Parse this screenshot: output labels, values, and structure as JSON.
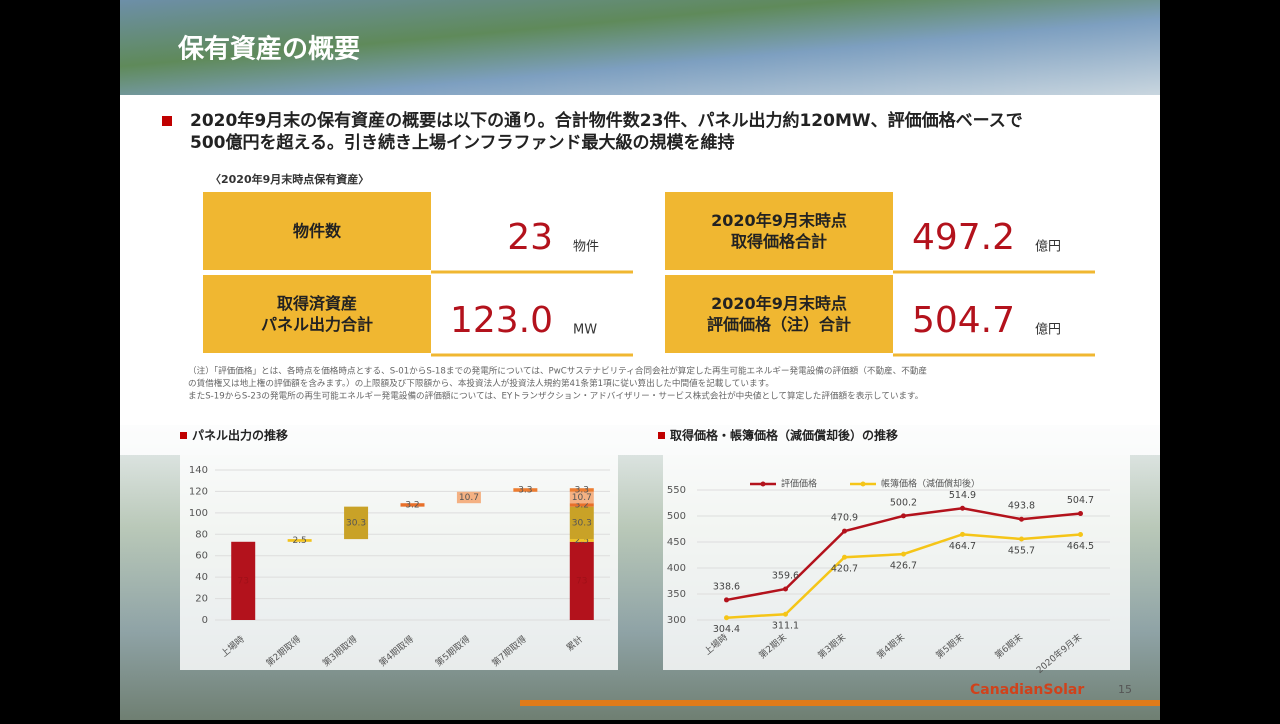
{
  "header": {
    "title": "保有資産の概要"
  },
  "summary_lines": [
    "2020年9月末の保有資産の概要は以下の通り。合計物件数23件、パネル出力約120MW、評価価格ベースで",
    "500億円を超える。引き続き上場インフラファンド最大級の規模を維持"
  ],
  "table_caption": "〈2020年9月末時点保有資産〉",
  "cards": [
    {
      "label_lines": [
        "物件数"
      ],
      "value": "23",
      "unit": "物件"
    },
    {
      "label_lines": [
        "2020年9月末時点",
        "取得価格合計"
      ],
      "value": "497.2",
      "unit": "億円"
    },
    {
      "label_lines": [
        "取得済資産",
        "パネル出力合計"
      ],
      "value": "123.0",
      "unit": "MW"
    },
    {
      "label_lines": [
        "2020年9月末時点",
        "評価価格（注）合計"
      ],
      "value": "504.7",
      "unit": "億円"
    }
  ],
  "note_lines": [
    "（注）「評価価格」とは、各時点を価格時点とする、S-01からS-18までの発電所については、PwCサステナビリティ合同会社が算定した再生可能エネルギー発電設備の評価額（不動産、不動産",
    "の賃借権又は地上権の評価額を含みます。）の上限額及び下限額から、本投資法人が投資法人規約第41条第1項に従い算出した中間値を記載しています。",
    "またS-19からS-23の発電所の再生可能エネルギー発電設備の評価額については、EYトランザクション・アドバイザリー・サービス株式会社が中央値として算定した評価額を表示しています。"
  ],
  "chart_data": [
    {
      "type": "waterfall",
      "title": "パネル出力の推移",
      "categories": [
        "上場時",
        "第2期取得",
        "第3期取得",
        "第4期取得",
        "第5期取得",
        "第7期取得",
        "累計"
      ],
      "values": [
        73.0,
        2.5,
        30.3,
        3.2,
        10.7,
        3.3,
        null
      ],
      "colors": [
        "#b3121c",
        "#f2c21b",
        "#c9a227",
        "#e8702a",
        "#f4b183",
        "#ed7d31",
        null
      ],
      "ylim": [
        0,
        140
      ],
      "yticks": [
        0,
        20,
        40,
        60,
        80,
        100,
        120,
        140
      ],
      "grid": true
    },
    {
      "type": "line",
      "title": "取得価格・帳簿価格（減価償却後）の推移",
      "categories": [
        "上場時",
        "第2期末",
        "第3期末",
        "第4期末",
        "第5期末",
        "第6期末",
        "2020年9月末"
      ],
      "series": [
        {
          "name": "評価価格",
          "color": "#b3121c",
          "values": [
            338.6,
            359.6,
            470.9,
            500.2,
            514.9,
            493.8,
            504.7
          ]
        },
        {
          "name": "帳簿価格（減価償却後）",
          "color": "#f5c518",
          "values": [
            304.4,
            311.1,
            420.7,
            426.7,
            464.7,
            455.7,
            464.5
          ]
        }
      ],
      "ylim": [
        300,
        550
      ],
      "yticks": [
        300,
        350,
        400,
        450,
        500,
        550
      ],
      "grid": true
    }
  ],
  "footer": {
    "logo": "CanadianSolar",
    "page": "15"
  }
}
